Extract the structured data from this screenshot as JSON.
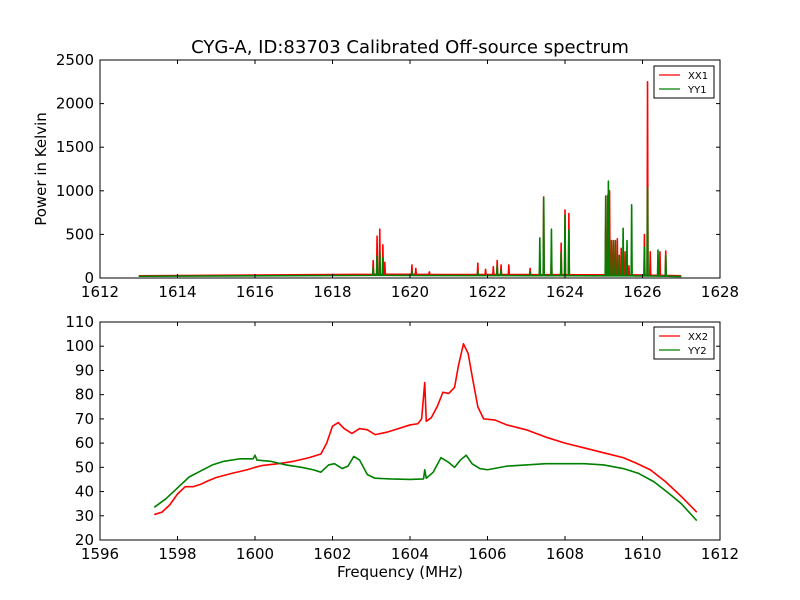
{
  "figure": {
    "title": "CYG-A, ID:83703 Calibrated Off-source spectrum"
  },
  "chart_data": [
    {
      "type": "line",
      "ylabel": "Power in Kelvin",
      "xlabel": "",
      "xlim": [
        1612,
        1628
      ],
      "ylim": [
        0,
        2500
      ],
      "xticks": [
        1612,
        1614,
        1616,
        1618,
        1620,
        1622,
        1624,
        1626,
        1628
      ],
      "yticks": [
        0,
        500,
        1000,
        1500,
        2000,
        2500
      ],
      "grid": false,
      "legend": "top-right",
      "series": [
        {
          "name": "XX1",
          "color": "#ff0000",
          "baseline": [
            [
              1613.0,
              25
            ],
            [
              1614.0,
              35
            ],
            [
              1616.0,
              40
            ],
            [
              1618.0,
              42
            ],
            [
              1620.0,
              42
            ],
            [
              1622.0,
              40
            ],
            [
              1624.0,
              38
            ],
            [
              1626.0,
              35
            ],
            [
              1627.0,
              25
            ]
          ],
          "spikes": [
            [
              1619.05,
              200
            ],
            [
              1619.15,
              480
            ],
            [
              1619.22,
              560
            ],
            [
              1619.3,
              380
            ],
            [
              1619.35,
              180
            ],
            [
              1620.05,
              150
            ],
            [
              1620.15,
              110
            ],
            [
              1620.5,
              70
            ],
            [
              1621.75,
              170
            ],
            [
              1621.95,
              100
            ],
            [
              1622.15,
              130
            ],
            [
              1622.25,
              200
            ],
            [
              1622.35,
              150
            ],
            [
              1622.55,
              150
            ],
            [
              1623.1,
              110
            ],
            [
              1623.35,
              150
            ],
            [
              1623.45,
              930
            ],
            [
              1623.65,
              280
            ],
            [
              1623.9,
              400
            ],
            [
              1624.0,
              780
            ],
            [
              1624.1,
              740
            ],
            [
              1625.05,
              600
            ],
            [
              1625.1,
              950
            ],
            [
              1625.15,
              1000
            ],
            [
              1625.25,
              430
            ],
            [
              1625.35,
              450
            ],
            [
              1625.45,
              340
            ],
            [
              1625.55,
              300
            ],
            [
              1625.65,
              140
            ],
            [
              1626.05,
              500
            ],
            [
              1626.13,
              2250
            ],
            [
              1626.2,
              300
            ],
            [
              1626.45,
              300
            ],
            [
              1626.6,
              310
            ]
          ]
        },
        {
          "name": "YY1",
          "color": "#008000",
          "baseline": [
            [
              1613.0,
              20
            ],
            [
              1614.0,
              25
            ],
            [
              1616.0,
              28
            ],
            [
              1618.0,
              30
            ],
            [
              1620.0,
              30
            ],
            [
              1622.0,
              28
            ],
            [
              1624.0,
              26
            ],
            [
              1626.0,
              24
            ],
            [
              1627.0,
              18
            ]
          ],
          "spikes": [
            [
              1619.05,
              120
            ],
            [
              1619.15,
              250
            ],
            [
              1619.22,
              300
            ],
            [
              1619.3,
              230
            ],
            [
              1620.05,
              80
            ],
            [
              1621.75,
              80
            ],
            [
              1622.25,
              140
            ],
            [
              1622.35,
              90
            ],
            [
              1623.1,
              70
            ],
            [
              1623.35,
              460
            ],
            [
              1623.45,
              920
            ],
            [
              1623.65,
              560
            ],
            [
              1623.9,
              290
            ],
            [
              1624.0,
              720
            ],
            [
              1624.1,
              550
            ],
            [
              1625.05,
              940
            ],
            [
              1625.12,
              1110
            ],
            [
              1625.2,
              430
            ],
            [
              1625.3,
              430
            ],
            [
              1625.4,
              260
            ],
            [
              1625.5,
              570
            ],
            [
              1625.6,
              430
            ],
            [
              1625.72,
              840
            ],
            [
              1626.05,
              350
            ],
            [
              1626.13,
              1040
            ],
            [
              1626.4,
              320
            ],
            [
              1626.6,
              260
            ]
          ]
        }
      ]
    },
    {
      "type": "line",
      "ylabel": "",
      "xlabel": "Frequency (MHz)",
      "xlim": [
        1596,
        1612
      ],
      "ylim": [
        20,
        110
      ],
      "xticks": [
        1596,
        1598,
        1600,
        1602,
        1604,
        1606,
        1608,
        1610,
        1612
      ],
      "yticks": [
        20,
        30,
        40,
        50,
        60,
        70,
        80,
        90,
        100,
        110
      ],
      "grid": false,
      "legend": "top-right",
      "series": [
        {
          "name": "XX2",
          "color": "#ff0000",
          "points": [
            [
              1597.4,
              30.5
            ],
            [
              1597.6,
              31.5
            ],
            [
              1597.8,
              34.5
            ],
            [
              1598.0,
              39.0
            ],
            [
              1598.2,
              42.0
            ],
            [
              1598.4,
              42.0
            ],
            [
              1598.6,
              43.0
            ],
            [
              1598.8,
              44.5
            ],
            [
              1599.0,
              45.8
            ],
            [
              1599.4,
              47.5
            ],
            [
              1599.8,
              49.0
            ],
            [
              1600.0,
              50.0
            ],
            [
              1600.2,
              50.8
            ],
            [
              1600.6,
              51.5
            ],
            [
              1601.0,
              52.5
            ],
            [
              1601.4,
              54.0
            ],
            [
              1601.7,
              55.5
            ],
            [
              1601.85,
              60.0
            ],
            [
              1602.0,
              67.0
            ],
            [
              1602.15,
              68.5
            ],
            [
              1602.3,
              66.0
            ],
            [
              1602.5,
              64.0
            ],
            [
              1602.7,
              66.0
            ],
            [
              1602.9,
              65.5
            ],
            [
              1603.1,
              63.5
            ],
            [
              1603.4,
              64.5
            ],
            [
              1603.7,
              66.0
            ],
            [
              1604.0,
              67.5
            ],
            [
              1604.2,
              68.0
            ],
            [
              1604.3,
              70.0
            ],
            [
              1604.38,
              85.0
            ],
            [
              1604.42,
              69.0
            ],
            [
              1604.55,
              70.5
            ],
            [
              1604.7,
              75.0
            ],
            [
              1604.85,
              81.0
            ],
            [
              1605.0,
              80.5
            ],
            [
              1605.15,
              83.0
            ],
            [
              1605.25,
              92.0
            ],
            [
              1605.38,
              101.0
            ],
            [
              1605.5,
              97.0
            ],
            [
              1605.6,
              88.0
            ],
            [
              1605.75,
              75.0
            ],
            [
              1605.9,
              70.0
            ],
            [
              1606.2,
              69.5
            ],
            [
              1606.5,
              67.5
            ],
            [
              1607.0,
              65.5
            ],
            [
              1607.5,
              62.5
            ],
            [
              1608.0,
              60.0
            ],
            [
              1608.5,
              58.0
            ],
            [
              1609.0,
              56.0
            ],
            [
              1609.5,
              54.0
            ],
            [
              1609.8,
              52.0
            ],
            [
              1610.2,
              49.0
            ],
            [
              1610.6,
              44.0
            ],
            [
              1611.0,
              38.0
            ],
            [
              1611.4,
              31.5
            ]
          ]
        },
        {
          "name": "YY2",
          "color": "#008000",
          "points": [
            [
              1597.4,
              33.5
            ],
            [
              1597.7,
              37.0
            ],
            [
              1598.0,
              41.5
            ],
            [
              1598.3,
              46.0
            ],
            [
              1598.6,
              48.5
            ],
            [
              1598.9,
              51.0
            ],
            [
              1599.2,
              52.5
            ],
            [
              1599.6,
              53.5
            ],
            [
              1599.95,
              53.5
            ],
            [
              1600.0,
              55.0
            ],
            [
              1600.05,
              53.0
            ],
            [
              1600.4,
              52.5
            ],
            [
              1600.8,
              51.0
            ],
            [
              1601.2,
              50.0
            ],
            [
              1601.5,
              49.0
            ],
            [
              1601.7,
              48.0
            ],
            [
              1601.9,
              51.0
            ],
            [
              1602.05,
              51.5
            ],
            [
              1602.25,
              49.5
            ],
            [
              1602.4,
              50.5
            ],
            [
              1602.55,
              54.5
            ],
            [
              1602.7,
              53.0
            ],
            [
              1602.9,
              47.0
            ],
            [
              1603.1,
              45.5
            ],
            [
              1603.5,
              45.2
            ],
            [
              1604.0,
              45.0
            ],
            [
              1604.35,
              45.2
            ],
            [
              1604.38,
              49.0
            ],
            [
              1604.42,
              45.5
            ],
            [
              1604.6,
              48.0
            ],
            [
              1604.8,
              54.0
            ],
            [
              1605.0,
              52.0
            ],
            [
              1605.15,
              50.0
            ],
            [
              1605.3,
              53.0
            ],
            [
              1605.45,
              55.0
            ],
            [
              1605.6,
              51.5
            ],
            [
              1605.8,
              49.5
            ],
            [
              1606.0,
              49.0
            ],
            [
              1606.5,
              50.5
            ],
            [
              1607.0,
              51.0
            ],
            [
              1607.5,
              51.5
            ],
            [
              1608.0,
              51.5
            ],
            [
              1608.5,
              51.5
            ],
            [
              1609.0,
              51.0
            ],
            [
              1609.5,
              49.5
            ],
            [
              1609.9,
              47.5
            ],
            [
              1610.3,
              44.0
            ],
            [
              1610.7,
              39.0
            ],
            [
              1611.0,
              35.0
            ],
            [
              1611.4,
              28.0
            ]
          ]
        }
      ]
    }
  ]
}
